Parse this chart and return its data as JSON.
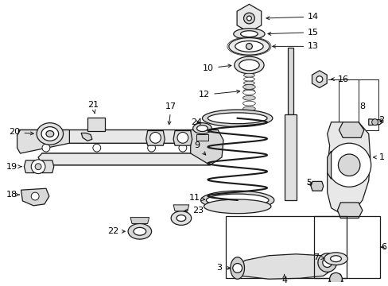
{
  "bg_color": "#ffffff",
  "line_color": "#1a1a1a",
  "fig_width": 4.89,
  "fig_height": 3.6,
  "dpi": 100,
  "font_size": 7.5,
  "lw": 0.9
}
